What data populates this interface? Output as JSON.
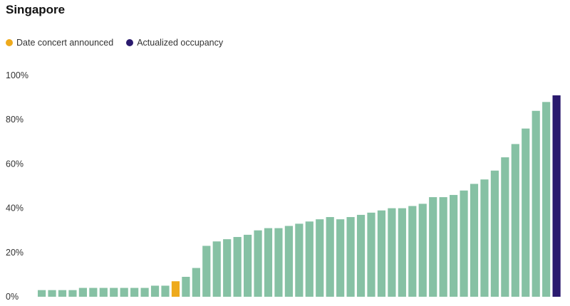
{
  "colors": {
    "default": "#86c1a4",
    "announced": "#eeaa1d",
    "actual": "#2a1a6e"
  },
  "chart_data": {
    "type": "bar",
    "title": "Singapore",
    "xlabel": "",
    "ylabel": "",
    "ylim": [
      0,
      100
    ],
    "y_ticks": [
      "0%",
      "20%",
      "40%",
      "60%",
      "80%",
      "100%"
    ],
    "grid": false,
    "legend": [
      {
        "label": "Date concert announced",
        "color": "#eeaa1d"
      },
      {
        "label": "Actualized occupancy",
        "color": "#2a1a6e"
      }
    ],
    "legend_placement": "top-left",
    "values": [
      3,
      3,
      3,
      3,
      4,
      4,
      4,
      4,
      4,
      4,
      4,
      5,
      5,
      7,
      9,
      13,
      23,
      25,
      26,
      27,
      28,
      30,
      31,
      31,
      32,
      33,
      34,
      35,
      36,
      35,
      36,
      37,
      38,
      39,
      40,
      40,
      41,
      42,
      45,
      45,
      46,
      48,
      51,
      53,
      57,
      63,
      69,
      76,
      84,
      88,
      91
    ],
    "highlights": {
      "announced_index": 13,
      "actual_index": 50
    }
  }
}
